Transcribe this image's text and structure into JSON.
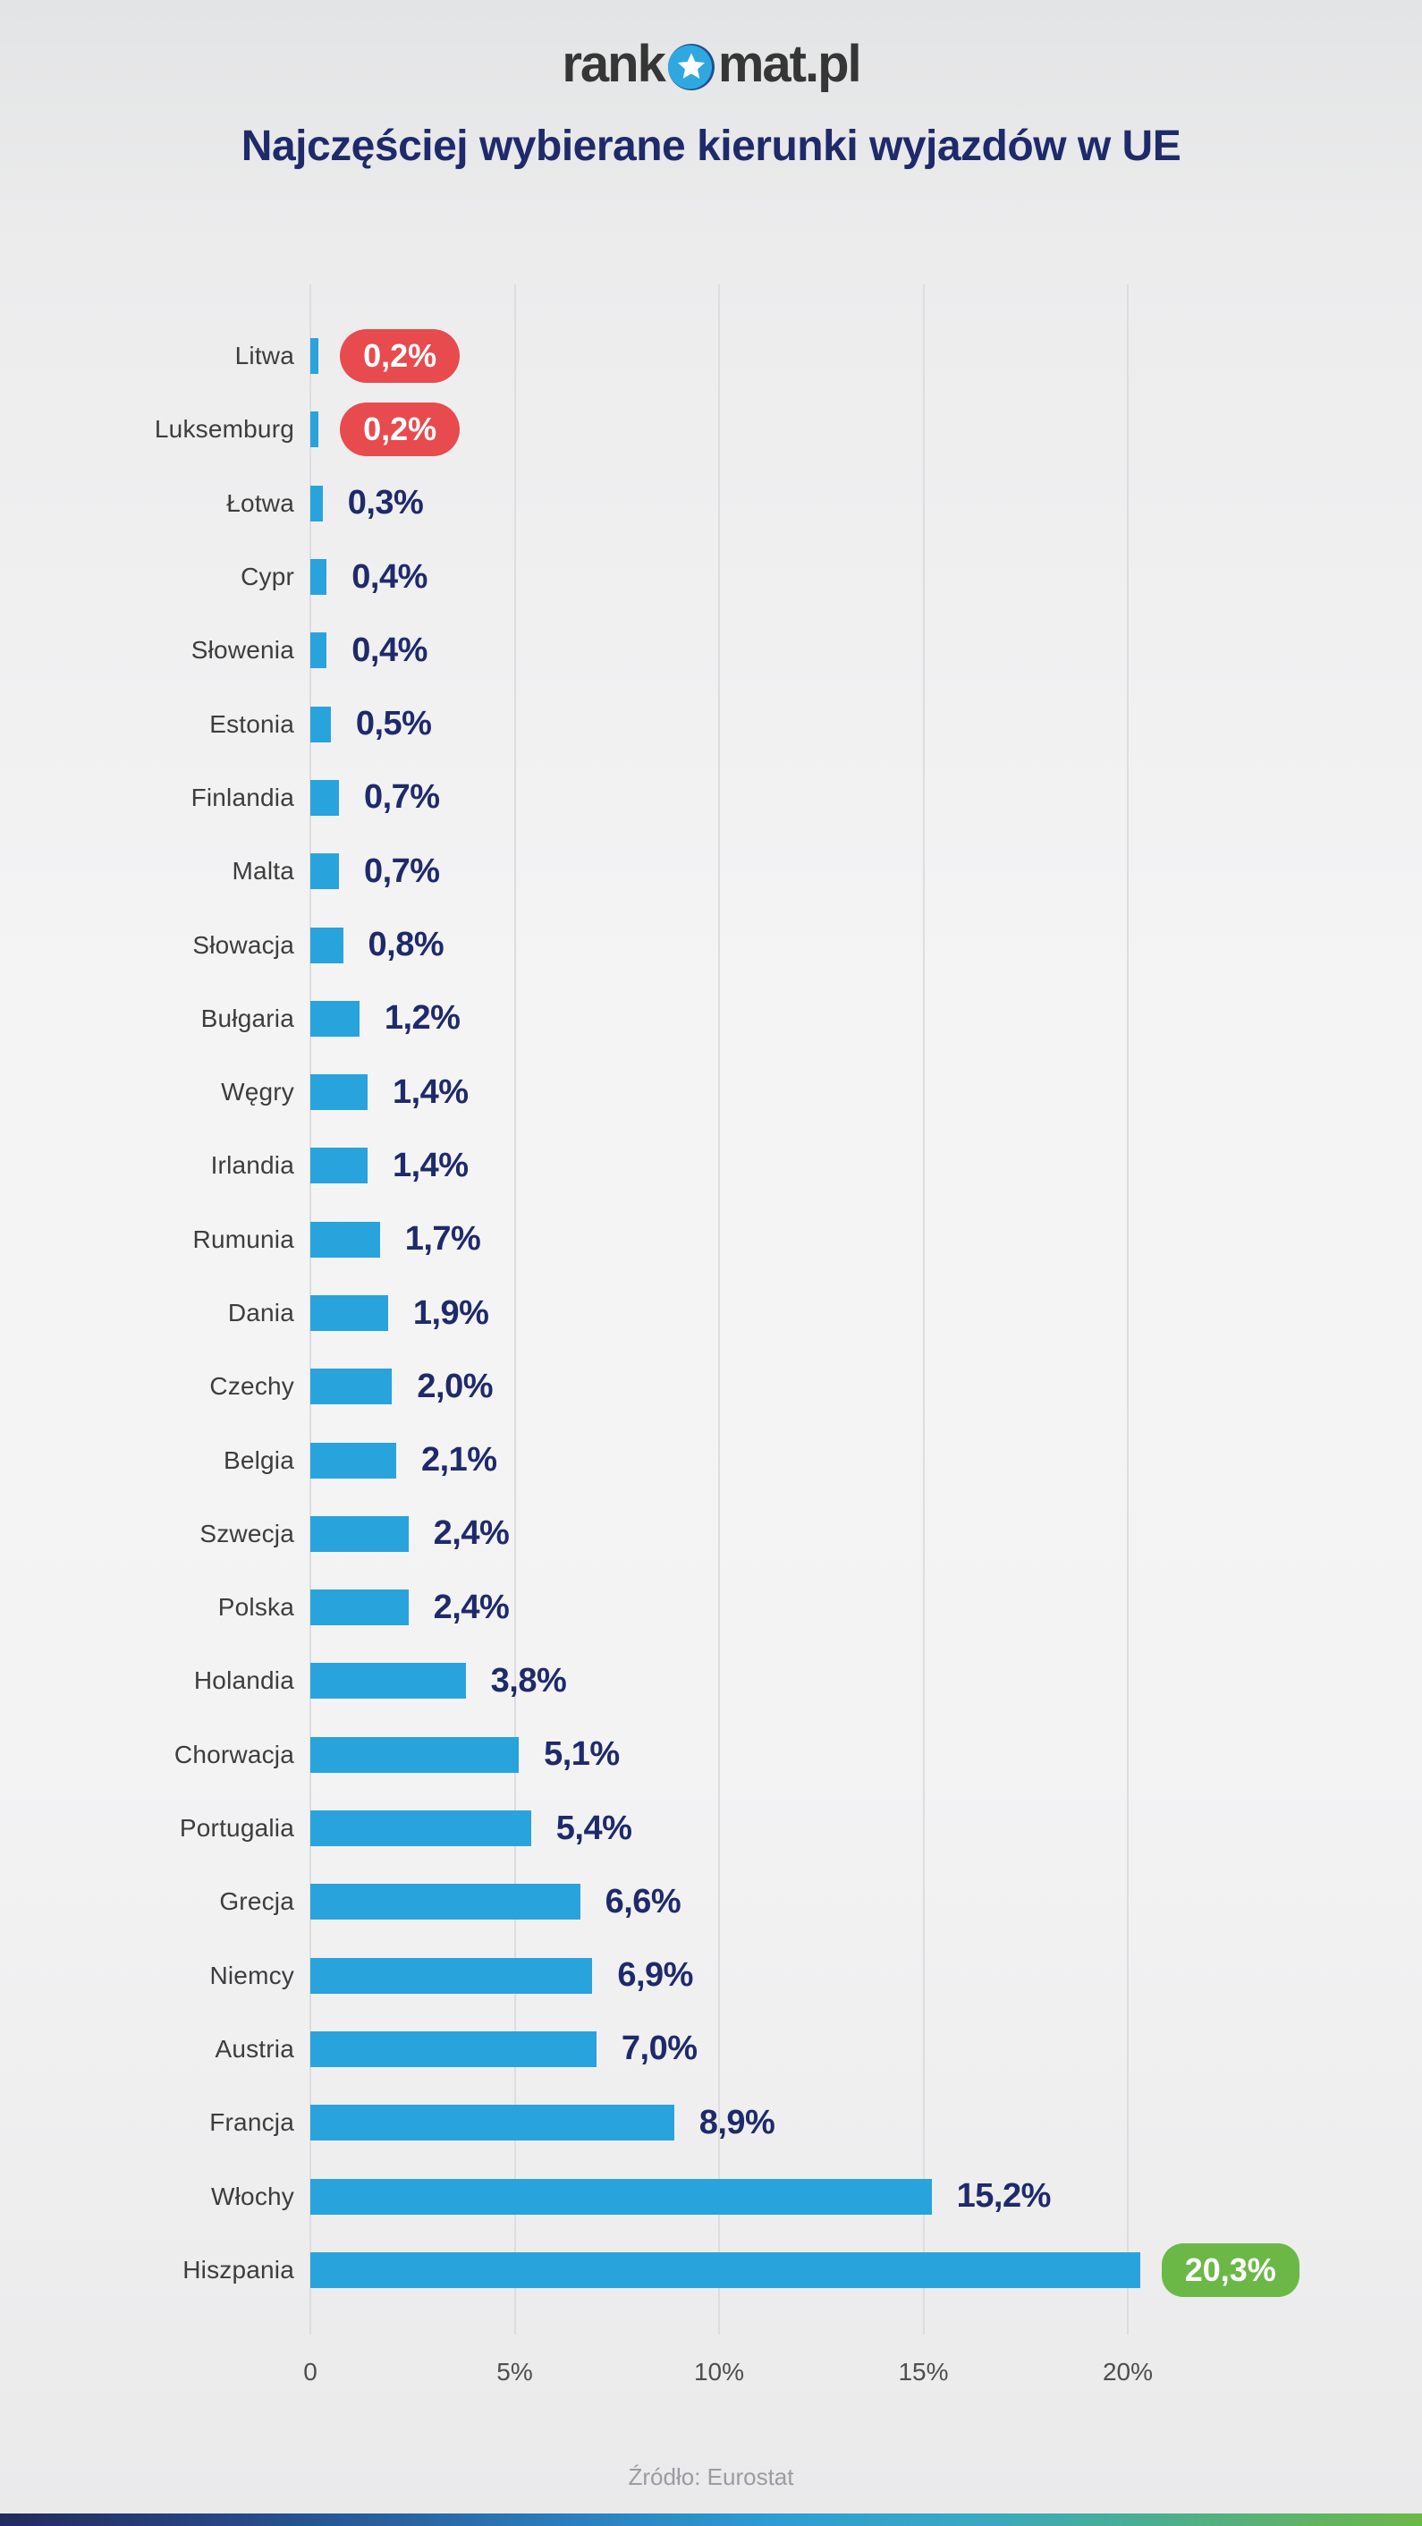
{
  "header": {
    "logo": {
      "prefix": "rank",
      "suffix": "mat.pl",
      "star_icon": "star-in-blue-circle"
    },
    "title": "Najczęściej wybierane kierunki wyjazdów w UE"
  },
  "chart_data": {
    "type": "bar",
    "orientation": "horizontal",
    "title": "Najczęściej wybierane kierunki wyjazdów w UE",
    "xlabel": "",
    "ylabel": "",
    "xlim": [
      0,
      22.8
    ],
    "grid": true,
    "legend": false,
    "x_ticks": [
      {
        "value": 0,
        "label": "0"
      },
      {
        "value": 5,
        "label": "5%"
      },
      {
        "value": 10,
        "label": "10%"
      },
      {
        "value": 15,
        "label": "15%"
      },
      {
        "value": 20,
        "label": "20%"
      }
    ],
    "categories": [
      "Litwa",
      "Luksemburg",
      "Łotwa",
      "Cypr",
      "Słowenia",
      "Estonia",
      "Finlandia",
      "Malta",
      "Słowacja",
      "Bułgaria",
      "Węgry",
      "Irlandia",
      "Rumunia",
      "Dania",
      "Czechy",
      "Belgia",
      "Szwecja",
      "Polska",
      "Holandia",
      "Chorwacja",
      "Portugalia",
      "Grecja",
      "Niemcy",
      "Austria",
      "Francja",
      "Włochy",
      "Hiszpania"
    ],
    "values": [
      0.2,
      0.2,
      0.3,
      0.4,
      0.4,
      0.5,
      0.7,
      0.7,
      0.8,
      1.2,
      1.4,
      1.4,
      1.7,
      1.9,
      2.0,
      2.1,
      2.4,
      2.4,
      3.8,
      5.1,
      5.4,
      6.6,
      6.9,
      7.0,
      8.9,
      15.2,
      20.3
    ],
    "value_labels": [
      "0,2%",
      "0,2%",
      "0,3%",
      "0,4%",
      "0,4%",
      "0,5%",
      "0,7%",
      "0,7%",
      "0,8%",
      "1,2%",
      "1,4%",
      "1,4%",
      "1,7%",
      "1,9%",
      "2,0%",
      "2,1%",
      "2,4%",
      "2,4%",
      "3,8%",
      "5,1%",
      "5,4%",
      "6,6%",
      "6,9%",
      "7,0%",
      "8,9%",
      "15,2%",
      "20,3%"
    ],
    "badges": [
      "red",
      "red",
      null,
      null,
      null,
      null,
      null,
      null,
      null,
      null,
      null,
      null,
      null,
      null,
      null,
      null,
      null,
      null,
      null,
      null,
      null,
      null,
      null,
      null,
      null,
      null,
      "green"
    ]
  },
  "footer": {
    "source": "Źródło: Eurostat"
  },
  "colors": {
    "bar": "#29a3dc",
    "value_text": "#1f2a6b",
    "title_text": "#1f2a6b",
    "red_badge": "#e74b4e",
    "green_badge": "#6cb847",
    "logo_text": "#363636",
    "logo_star_circle": "#2fa8e0",
    "gridline": "#dddde0",
    "source_text": "#9b9ba0",
    "bottom_strip_gradient": [
      "#222b5c",
      "#2d9ed2",
      "#6cb847"
    ]
  }
}
